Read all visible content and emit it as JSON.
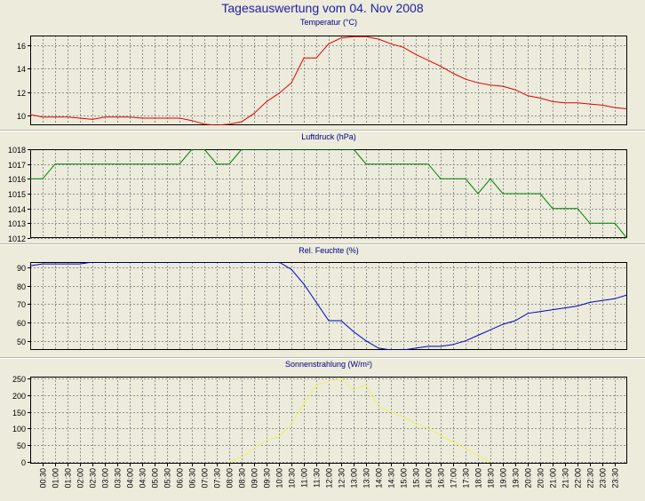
{
  "title": "Tagesauswertung vom 04. Nov 2008",
  "time_labels": [
    "00:30",
    "01:00",
    "01:30",
    "02:00",
    "02:30",
    "03:00",
    "03:30",
    "04:00",
    "04:30",
    "05:00",
    "05:30",
    "06:00",
    "06:30",
    "07:00",
    "07:30",
    "08:00",
    "08:30",
    "09:00",
    "09:30",
    "10:00",
    "10:30",
    "11:00",
    "11:30",
    "12:00",
    "12:30",
    "13:00",
    "13:30",
    "14:00",
    "14:30",
    "15:00",
    "15:30",
    "16:00",
    "16:30",
    "17:00",
    "17:30",
    "18:00",
    "18:30",
    "19:00",
    "19:30",
    "20:00",
    "20:30",
    "21:00",
    "21:30",
    "22:00",
    "22:30",
    "23:00",
    "23:30"
  ],
  "chart_data": [
    {
      "type": "line",
      "title": "Temperatur (°C)",
      "color": "#e00000",
      "ylim": [
        9.2,
        16.8
      ],
      "yticks": [
        10,
        12,
        14,
        16
      ],
      "grid": true,
      "x": [
        "00:00",
        "00:30",
        "01:00",
        "01:30",
        "02:00",
        "02:30",
        "03:00",
        "03:30",
        "04:00",
        "04:30",
        "05:00",
        "05:30",
        "06:00",
        "06:30",
        "07:00",
        "07:30",
        "08:00",
        "08:30",
        "09:00",
        "09:30",
        "10:00",
        "10:30",
        "11:00",
        "11:30",
        "12:00",
        "12:30",
        "13:00",
        "13:30",
        "14:00",
        "14:30",
        "15:00",
        "15:30",
        "16:00",
        "16:30",
        "17:00",
        "17:30",
        "18:00",
        "18:30",
        "19:00",
        "19:30",
        "20:00",
        "20:30",
        "21:00",
        "21:30",
        "22:00",
        "22:30",
        "23:00",
        "23:30",
        "23:59"
      ],
      "values": [
        10.1,
        9.9,
        9.9,
        9.9,
        9.8,
        9.7,
        9.9,
        9.9,
        9.9,
        9.8,
        9.8,
        9.8,
        9.8,
        9.6,
        9.3,
        9.2,
        9.3,
        9.5,
        10.2,
        11.2,
        11.9,
        12.8,
        14.9,
        14.9,
        16.1,
        16.6,
        16.7,
        16.7,
        16.5,
        16.1,
        15.8,
        15.2,
        14.7,
        14.2,
        13.6,
        13.1,
        12.8,
        12.6,
        12.5,
        12.2,
        11.7,
        11.5,
        11.2,
        11.1,
        11.1,
        11.0,
        10.9,
        10.7,
        10.6
      ]
    },
    {
      "type": "line",
      "title": "Luftdruck (hPa)",
      "color": "#008000",
      "ylim": [
        1012,
        1018
      ],
      "yticks": [
        1012,
        1013,
        1014,
        1015,
        1016,
        1017,
        1018
      ],
      "grid": true,
      "x": [
        "00:00",
        "00:30",
        "01:00",
        "01:30",
        "02:00",
        "02:30",
        "03:00",
        "03:30",
        "04:00",
        "04:30",
        "05:00",
        "05:30",
        "06:00",
        "06:30",
        "07:00",
        "07:30",
        "08:00",
        "08:30",
        "09:00",
        "09:30",
        "10:00",
        "10:30",
        "11:00",
        "11:30",
        "12:00",
        "12:30",
        "13:00",
        "13:30",
        "14:00",
        "14:30",
        "15:00",
        "15:30",
        "16:00",
        "16:30",
        "17:00",
        "17:30",
        "18:00",
        "18:30",
        "19:00",
        "19:30",
        "20:00",
        "20:30",
        "21:00",
        "21:30",
        "22:00",
        "22:30",
        "23:00",
        "23:30",
        "23:59"
      ],
      "values": [
        1016,
        1016,
        1017,
        1017,
        1017,
        1017,
        1017,
        1017,
        1017,
        1017,
        1017,
        1017,
        1017,
        1018,
        1018,
        1017,
        1017,
        1018,
        1018,
        1018,
        1018,
        1018,
        1018,
        1018,
        1018,
        1018,
        1018,
        1017,
        1017,
        1017,
        1017,
        1017,
        1017,
        1016,
        1016,
        1016,
        1015,
        1016,
        1015,
        1015,
        1015,
        1015,
        1014,
        1014,
        1014,
        1013,
        1013,
        1013,
        1012
      ]
    },
    {
      "type": "line",
      "title": "Rel. Feuchte (%)",
      "color": "#0000c0",
      "ylim": [
        45,
        93
      ],
      "yticks": [
        50,
        60,
        70,
        80,
        90
      ],
      "grid": true,
      "x": [
        "00:00",
        "00:30",
        "01:00",
        "01:30",
        "02:00",
        "02:30",
        "03:00",
        "03:30",
        "04:00",
        "04:30",
        "05:00",
        "05:30",
        "06:00",
        "06:30",
        "07:00",
        "07:30",
        "08:00",
        "08:30",
        "09:00",
        "09:30",
        "10:00",
        "10:30",
        "11:00",
        "11:30",
        "12:00",
        "12:30",
        "13:00",
        "13:30",
        "14:00",
        "14:30",
        "15:00",
        "15:30",
        "16:00",
        "16:30",
        "17:00",
        "17:30",
        "18:00",
        "18:30",
        "19:00",
        "19:30",
        "20:00",
        "20:30",
        "21:00",
        "21:30",
        "22:00",
        "22:30",
        "23:00",
        "23:30",
        "23:59"
      ],
      "values": [
        91,
        92,
        92,
        92,
        92,
        93,
        93,
        93,
        93,
        93,
        93,
        93,
        93,
        93,
        93,
        93,
        93,
        93,
        93,
        93,
        93,
        89,
        81,
        71,
        61,
        61,
        55,
        50,
        46,
        45,
        45,
        46,
        47,
        47,
        48,
        50,
        53,
        56,
        59,
        61,
        65,
        66,
        67,
        68,
        69,
        71,
        72,
        73,
        75
      ]
    },
    {
      "type": "line",
      "title": "Sonnenstrahlung (W/m²)",
      "color": "#f0f060",
      "ylim": [
        -5,
        255
      ],
      "yticks": [
        0,
        50,
        100,
        150,
        200,
        250
      ],
      "grid": true,
      "x": [
        "00:00",
        "00:30",
        "01:00",
        "01:30",
        "02:00",
        "02:30",
        "03:00",
        "03:30",
        "04:00",
        "04:30",
        "05:00",
        "05:30",
        "06:00",
        "06:30",
        "07:00",
        "07:30",
        "08:00",
        "08:30",
        "09:00",
        "09:30",
        "10:00",
        "10:30",
        "11:00",
        "11:30",
        "12:00",
        "12:30",
        "13:00",
        "13:30",
        "14:00",
        "14:30",
        "15:00",
        "15:30",
        "16:00",
        "16:30",
        "17:00",
        "17:30",
        "18:00",
        "18:30",
        "19:00",
        "19:30",
        "20:00",
        "20:30",
        "21:00",
        "21:30",
        "22:00",
        "22:30",
        "23:00",
        "23:30",
        "23:59"
      ],
      "values": [
        null,
        null,
        null,
        null,
        null,
        null,
        null,
        null,
        null,
        null,
        null,
        null,
        null,
        null,
        null,
        null,
        0,
        15,
        40,
        65,
        75,
        115,
        175,
        230,
        240,
        250,
        215,
        230,
        165,
        150,
        135,
        115,
        100,
        80,
        60,
        40,
        20,
        0,
        null,
        null,
        null,
        null,
        null,
        null,
        null,
        null,
        null,
        null,
        null
      ]
    }
  ]
}
